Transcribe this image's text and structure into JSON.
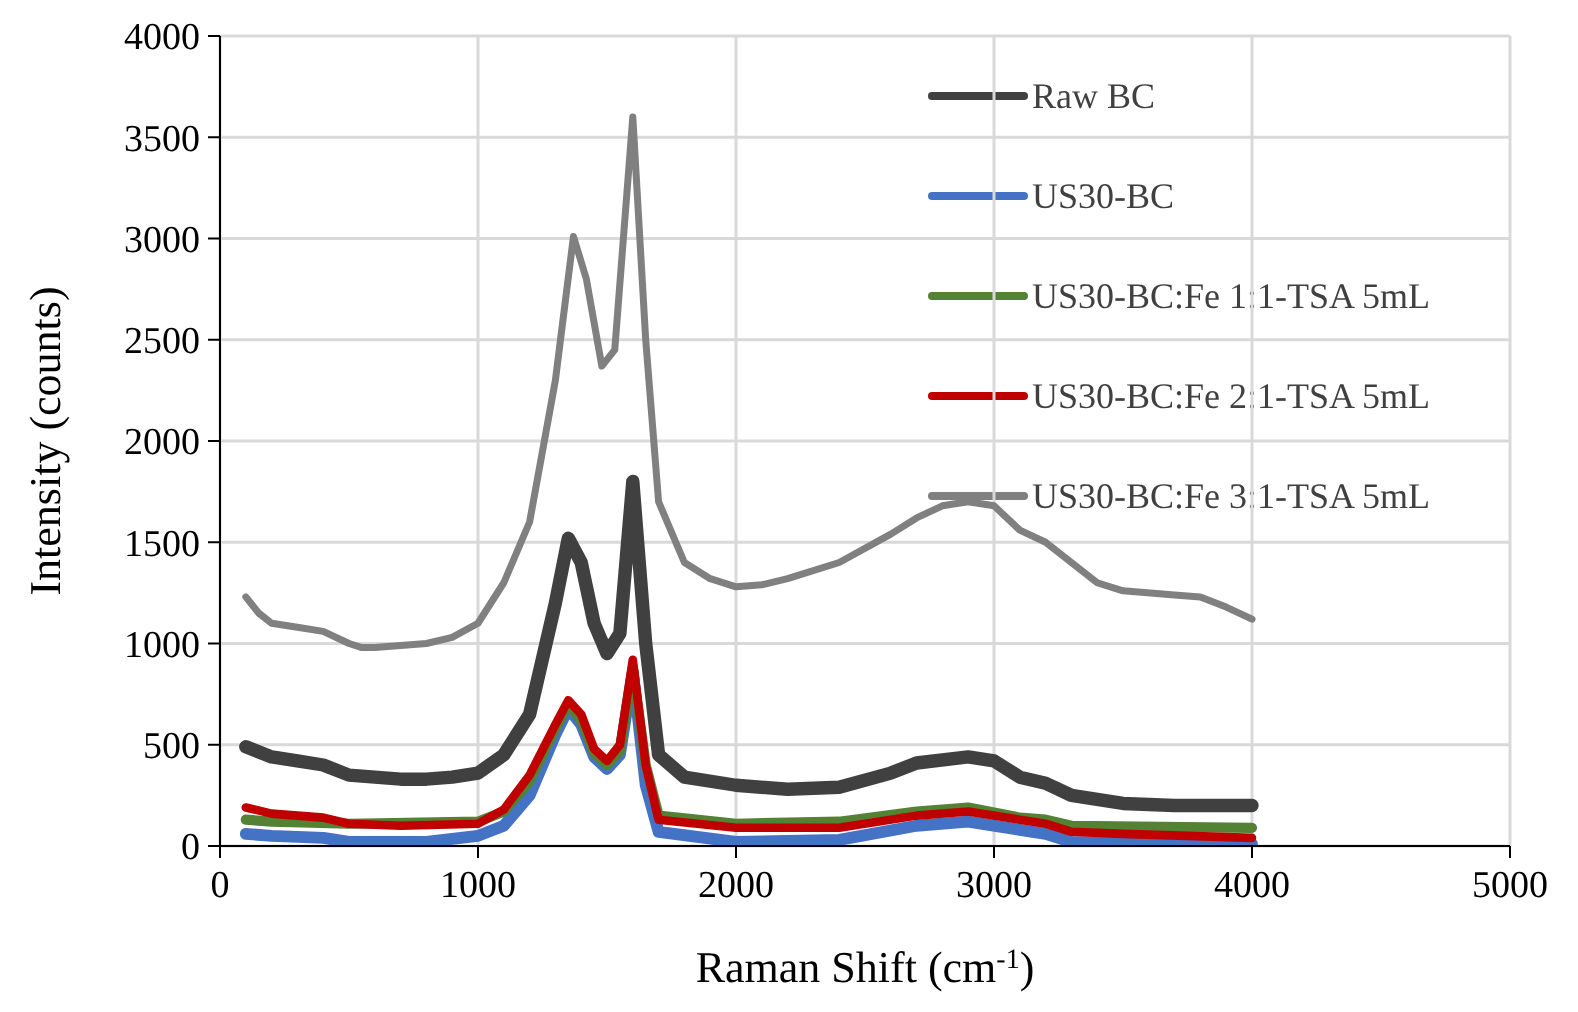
{
  "chart_data": {
    "type": "line",
    "xlabel": "Raman Shift (cm$^{-1}$)",
    "ylabel": "Intensity (counts)",
    "xlim": [
      0,
      5000
    ],
    "xticks": [
      0,
      1000,
      2000,
      3000,
      4000,
      5000
    ],
    "ylim": [
      0,
      4000
    ],
    "yticks": [
      0,
      500,
      1000,
      1500,
      2000,
      2500,
      3000,
      3500,
      4000
    ],
    "grid": true,
    "legend": "top right",
    "marker": "none",
    "line_style": "solid",
    "series": [
      {
        "name": "Raw BC",
        "color": "#404040",
        "x": [
          100,
          200,
          300,
          400,
          500,
          600,
          700,
          800,
          900,
          1000,
          1100,
          1200,
          1300,
          1350,
          1400,
          1450,
          1500,
          1550,
          1600,
          1650,
          1700,
          1800,
          2000,
          2200,
          2400,
          2600,
          2700,
          2900,
          3000,
          3100,
          3200,
          3300,
          3500,
          3700,
          4000
        ],
        "values": [
          490,
          440,
          420,
          400,
          350,
          340,
          330,
          330,
          340,
          360,
          450,
          650,
          1200,
          1520,
          1400,
          1100,
          950,
          1050,
          1800,
          1000,
          450,
          340,
          300,
          280,
          290,
          360,
          410,
          440,
          420,
          340,
          310,
          250,
          210,
          200,
          200
        ]
      },
      {
        "name": "US30-BC",
        "color": "#4472c4",
        "x": [
          100,
          200,
          400,
          500,
          800,
          1000,
          1100,
          1200,
          1300,
          1350,
          1400,
          1450,
          1500,
          1550,
          1600,
          1650,
          1700,
          2000,
          2400,
          2700,
          2900,
          3100,
          3200,
          3300,
          4000
        ],
        "values": [
          60,
          50,
          40,
          20,
          20,
          50,
          100,
          250,
          550,
          680,
          600,
          440,
          380,
          450,
          860,
          300,
          70,
          20,
          30,
          100,
          120,
          80,
          60,
          20,
          10
        ]
      },
      {
        "name": "US30-BC:Fe 1:1-TSA 5mL",
        "color": "#548235",
        "x": [
          100,
          200,
          500,
          1000,
          1100,
          1200,
          1300,
          1350,
          1400,
          1450,
          1500,
          1550,
          1600,
          1650,
          1700,
          2000,
          2400,
          2700,
          2900,
          3100,
          3200,
          3300,
          4000
        ],
        "values": [
          130,
          120,
          110,
          120,
          170,
          320,
          580,
          700,
          620,
          460,
          400,
          470,
          880,
          400,
          150,
          110,
          120,
          170,
          190,
          140,
          130,
          100,
          90
        ]
      },
      {
        "name": "US30-BC:Fe 2:1-TSA 5mL",
        "color": "#c00000",
        "x": [
          100,
          200,
          400,
          500,
          700,
          1000,
          1100,
          1200,
          1300,
          1350,
          1400,
          1450,
          1500,
          1550,
          1600,
          1650,
          1700,
          2000,
          2400,
          2700,
          2900,
          3100,
          3200,
          3300,
          3500,
          4000
        ],
        "values": [
          190,
          160,
          140,
          110,
          100,
          110,
          180,
          350,
          600,
          720,
          650,
          480,
          420,
          500,
          920,
          400,
          130,
          90,
          90,
          150,
          170,
          130,
          110,
          70,
          60,
          40
        ]
      },
      {
        "name": "US30-BC:Fe 3:1-TSA 5mL",
        "color": "#808080",
        "x": [
          100,
          150,
          200,
          300,
          400,
          500,
          550,
          600,
          700,
          800,
          900,
          1000,
          1100,
          1200,
          1300,
          1370,
          1420,
          1480,
          1530,
          1600,
          1650,
          1700,
          1800,
          1900,
          2000,
          2100,
          2200,
          2400,
          2600,
          2700,
          2800,
          2900,
          3000,
          3100,
          3200,
          3300,
          3400,
          3500,
          3700,
          3800,
          3900,
          4000
        ],
        "values": [
          1230,
          1150,
          1100,
          1080,
          1060,
          1000,
          980,
          980,
          990,
          1000,
          1030,
          1100,
          1300,
          1600,
          2300,
          3010,
          2800,
          2370,
          2450,
          3600,
          2500,
          1700,
          1400,
          1320,
          1280,
          1290,
          1320,
          1400,
          1540,
          1620,
          1680,
          1700,
          1680,
          1560,
          1500,
          1400,
          1300,
          1260,
          1240,
          1230,
          1180,
          1120
        ]
      }
    ]
  }
}
